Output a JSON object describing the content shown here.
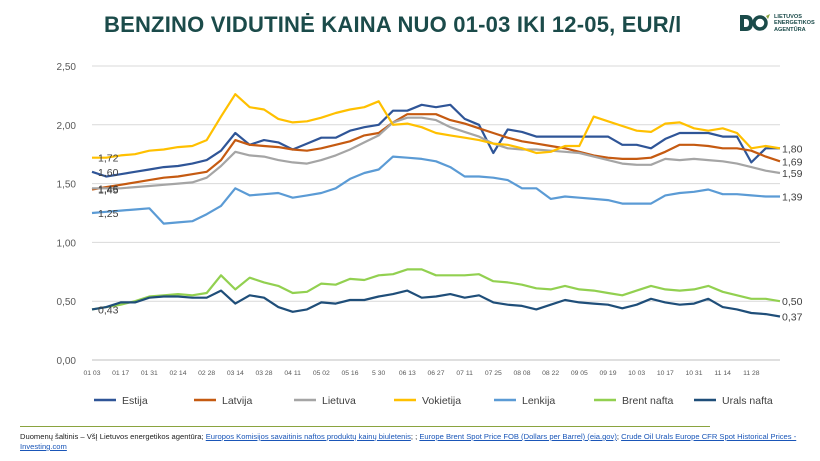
{
  "title": "BENZINO VIDUTINĖ KAINA NUO 01-03 IKI 12-05, EUR/l",
  "logo": {
    "text": "LIETUVOS\nENERGETIKOS\nAGENTŪRA",
    "icon": "lea-logo-icon",
    "color": "#1b4b4a"
  },
  "sources": {
    "prefix": "Duomenų šaltinis – VšĮ Lietuvos energetikos agentūra; ",
    "link1": "Europos Komisijos savaitinis naftos produktų kainų biuletenis",
    "sep1": "; ; ",
    "link2": "Europe Brent Spot Price FOB (Dollars per Barrel) (eia.gov)",
    "sep2": "; ",
    "link3": "Crude Oil Urals Europe CFR Spot Historical Prices - Investing.com"
  },
  "chart_data": {
    "type": "line",
    "x": [
      "01 03",
      "01 10",
      "01 17",
      "01 24",
      "01 31",
      "02 07",
      "02 14",
      "02 21",
      "02 28",
      "03 07",
      "03 14",
      "03 21",
      "03 28",
      "04 04",
      "04 11",
      "04 18",
      "04 25",
      "05 02",
      "05 09",
      "05 16",
      "05 23",
      "05 30",
      "06 06",
      "06 13",
      "06 20",
      "06 27",
      "07 04",
      "07 11",
      "07 18",
      "07 25",
      "08 01",
      "08 08",
      "08 15",
      "08 22",
      "08 29",
      "09 05",
      "09 12",
      "09 19",
      "09 26",
      "10 03",
      "10 10",
      "10 17",
      "10 24",
      "10 31",
      "11 07",
      "11 14",
      "11 21",
      "11 28",
      "12 05"
    ],
    "xtick_labels": [
      "01 03",
      "01 17",
      "01 31",
      "02 14",
      "02 28",
      "03 14",
      "03 28",
      "04 11",
      "05 02",
      "05 16",
      "5 30",
      "06 13",
      "06 27",
      "07 11",
      "07 25",
      "08 08",
      "08 22",
      "09 05",
      "09 19",
      "10 03",
      "10 17",
      "10 31",
      "11 14",
      "11 28"
    ],
    "ylim": [
      0,
      2.5
    ],
    "yticks": [
      "0,00",
      "0,50",
      "1,00",
      "1,50",
      "2,00",
      "2,50"
    ],
    "grid": true,
    "legend_position": "bottom",
    "series": [
      {
        "name": "Estija",
        "color": "#2f5597",
        "values": [
          1.6,
          1.56,
          1.58,
          1.6,
          1.62,
          1.64,
          1.65,
          1.67,
          1.7,
          1.78,
          1.93,
          1.83,
          1.87,
          1.85,
          1.79,
          1.84,
          1.89,
          1.89,
          1.95,
          1.98,
          2.0,
          2.12,
          2.12,
          2.17,
          2.15,
          2.17,
          2.05,
          2.0,
          1.76,
          1.96,
          1.94,
          1.9,
          1.9,
          1.9,
          1.9,
          1.9,
          1.9,
          1.83,
          1.83,
          1.8,
          1.88,
          1.93,
          1.93,
          1.93,
          1.9,
          1.9,
          1.68,
          1.8,
          1.8
        ],
        "start_label": "1,60",
        "end_label": "1,80"
      },
      {
        "name": "Latvija",
        "color": "#c55a11",
        "values": [
          1.45,
          1.47,
          1.49,
          1.51,
          1.53,
          1.55,
          1.56,
          1.58,
          1.6,
          1.7,
          1.87,
          1.83,
          1.82,
          1.81,
          1.79,
          1.78,
          1.8,
          1.83,
          1.86,
          1.91,
          1.93,
          2.02,
          2.09,
          2.09,
          2.09,
          2.04,
          2.01,
          1.97,
          1.93,
          1.89,
          1.86,
          1.84,
          1.82,
          1.8,
          1.77,
          1.74,
          1.72,
          1.71,
          1.71,
          1.72,
          1.77,
          1.83,
          1.83,
          1.82,
          1.8,
          1.8,
          1.78,
          1.73,
          1.69
        ],
        "start_label": "1,45",
        "end_label": "1,69"
      },
      {
        "name": "Lietuva",
        "color": "#a5a5a5",
        "values": [
          1.46,
          1.46,
          1.46,
          1.47,
          1.48,
          1.49,
          1.5,
          1.51,
          1.55,
          1.65,
          1.77,
          1.74,
          1.73,
          1.7,
          1.68,
          1.67,
          1.7,
          1.74,
          1.79,
          1.85,
          1.91,
          2.02,
          2.06,
          2.06,
          2.04,
          1.98,
          1.94,
          1.9,
          1.84,
          1.8,
          1.79,
          1.79,
          1.78,
          1.77,
          1.76,
          1.73,
          1.7,
          1.67,
          1.66,
          1.66,
          1.71,
          1.7,
          1.71,
          1.7,
          1.69,
          1.67,
          1.64,
          1.61,
          1.59
        ],
        "start_label": "1,46",
        "end_label": "1,59"
      },
      {
        "name": "Vokietija",
        "color": "#ffc000",
        "values": [
          1.72,
          1.72,
          1.74,
          1.75,
          1.78,
          1.79,
          1.81,
          1.82,
          1.87,
          2.07,
          2.26,
          2.15,
          2.13,
          2.05,
          2.02,
          2.03,
          2.06,
          2.1,
          2.13,
          2.15,
          2.2,
          2.0,
          2.01,
          1.98,
          1.93,
          1.91,
          1.89,
          1.87,
          1.84,
          1.83,
          1.8,
          1.76,
          1.77,
          1.82,
          1.82,
          2.07,
          2.03,
          1.99,
          1.95,
          1.94,
          2.01,
          2.02,
          1.97,
          1.95,
          1.97,
          1.93,
          1.8,
          1.82,
          1.8
        ],
        "start_label": "1,72",
        "end_label": null
      },
      {
        "name": "Lenkija",
        "color": "#5b9bd5",
        "values": [
          1.25,
          1.26,
          1.27,
          1.28,
          1.29,
          1.16,
          1.17,
          1.18,
          1.24,
          1.31,
          1.46,
          1.4,
          1.41,
          1.42,
          1.38,
          1.4,
          1.42,
          1.46,
          1.54,
          1.59,
          1.62,
          1.73,
          1.72,
          1.71,
          1.69,
          1.64,
          1.56,
          1.56,
          1.55,
          1.53,
          1.46,
          1.46,
          1.37,
          1.39,
          1.38,
          1.37,
          1.36,
          1.33,
          1.33,
          1.33,
          1.4,
          1.42,
          1.43,
          1.45,
          1.41,
          1.41,
          1.4,
          1.39,
          1.39
        ],
        "start_label": "1,25",
        "end_label": "1,39"
      },
      {
        "name": "Brent nafta",
        "color": "#92d050",
        "values": [
          0.43,
          0.45,
          0.47,
          0.5,
          0.54,
          0.55,
          0.56,
          0.55,
          0.57,
          0.72,
          0.6,
          0.7,
          0.66,
          0.63,
          0.57,
          0.58,
          0.65,
          0.64,
          0.69,
          0.68,
          0.72,
          0.73,
          0.77,
          0.77,
          0.72,
          0.72,
          0.72,
          0.73,
          0.67,
          0.66,
          0.64,
          0.61,
          0.6,
          0.63,
          0.6,
          0.59,
          0.57,
          0.55,
          0.59,
          0.63,
          0.6,
          0.59,
          0.6,
          0.63,
          0.58,
          0.55,
          0.52,
          0.52,
          0.5
        ],
        "start_label": null,
        "end_label": "0,50"
      },
      {
        "name": "Urals nafta",
        "color": "#1f4e79",
        "values": [
          0.43,
          0.45,
          0.49,
          0.49,
          0.53,
          0.54,
          0.54,
          0.53,
          0.53,
          0.59,
          0.48,
          0.55,
          0.53,
          0.45,
          0.41,
          0.43,
          0.49,
          0.48,
          0.51,
          0.51,
          0.54,
          0.56,
          0.59,
          0.53,
          0.54,
          0.56,
          0.53,
          0.55,
          0.49,
          0.47,
          0.46,
          0.43,
          0.47,
          0.51,
          0.49,
          0.48,
          0.47,
          0.44,
          0.47,
          0.52,
          0.49,
          0.47,
          0.48,
          0.52,
          0.45,
          0.43,
          0.4,
          0.39,
          0.37
        ],
        "start_label": "0,43",
        "end_label": "0,37"
      }
    ]
  }
}
